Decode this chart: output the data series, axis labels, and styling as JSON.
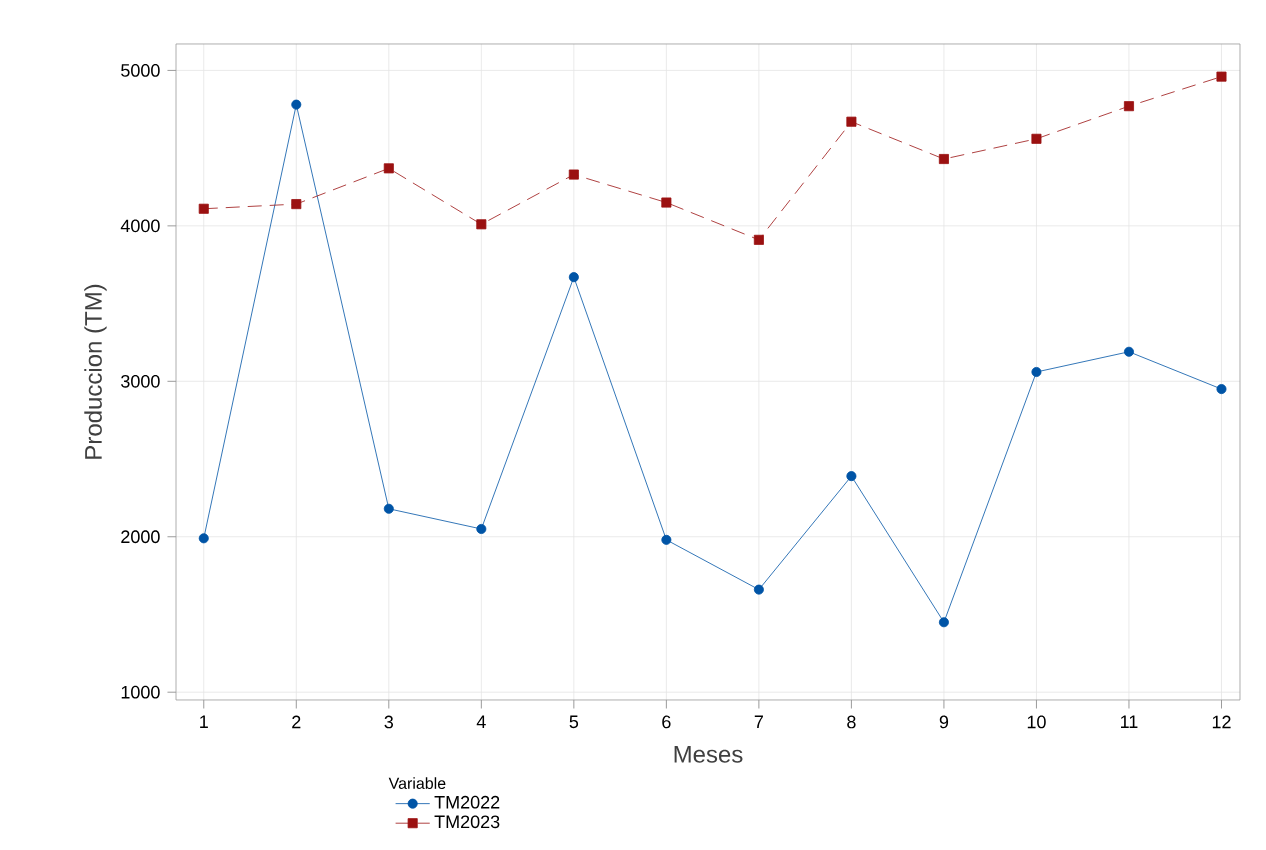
{
  "chart_data": {
    "type": "line",
    "xlabel": "Meses",
    "ylabel": "Produccion (TM)",
    "legend_title": "Variable",
    "legend": "bottom",
    "grid": true,
    "x": [
      1,
      2,
      3,
      4,
      5,
      6,
      7,
      8,
      9,
      10,
      11,
      12
    ],
    "xlim": [
      0.7,
      12.2
    ],
    "xticks": [
      1,
      2,
      3,
      4,
      5,
      6,
      7,
      8,
      9,
      10,
      11,
      12
    ],
    "ylim": [
      950,
      5170
    ],
    "yticks": [
      1000,
      2000,
      3000,
      4000,
      5000
    ],
    "series": [
      {
        "name": "TM2022",
        "color": "#0054a6",
        "marker": "circle",
        "line_style": "solid",
        "values": [
          1990,
          4780,
          2180,
          2050,
          3670,
          1980,
          1660,
          2390,
          1450,
          3060,
          3190,
          2950
        ]
      },
      {
        "name": "TM2023",
        "color": "#9b1111",
        "marker": "square",
        "line_style": "dashed",
        "values": [
          4110,
          4140,
          4370,
          4010,
          4330,
          4150,
          3910,
          4670,
          4430,
          4560,
          4770,
          4960
        ]
      }
    ]
  }
}
